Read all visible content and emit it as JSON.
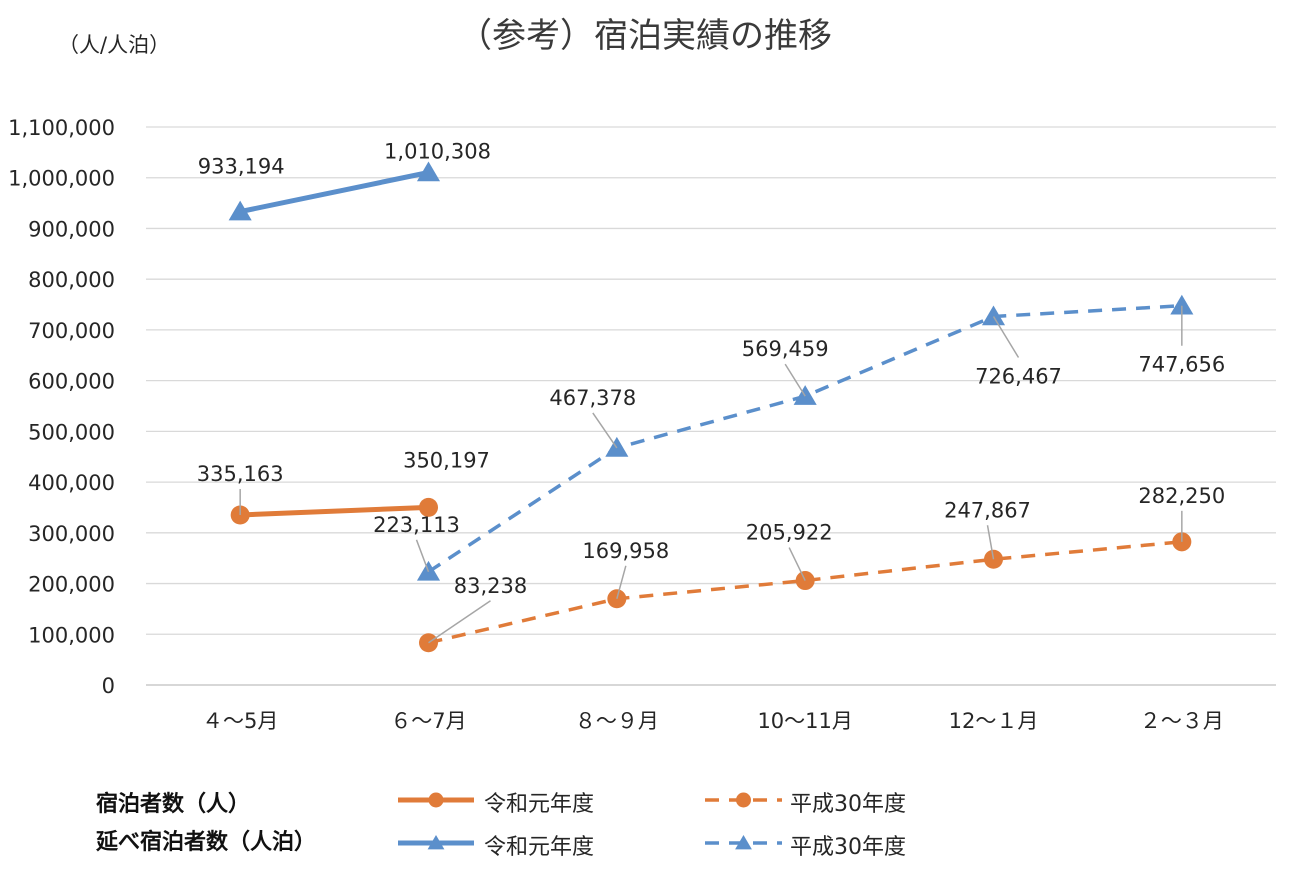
{
  "chart_data": {
    "type": "line",
    "title": "（参考）宿泊実績の推移",
    "ylabel": "（人/人泊）",
    "xlabel": "",
    "categories": [
      "４～5月",
      "６～7月",
      "８～９月",
      "10～11月",
      "12～１月",
      "２～３月"
    ],
    "ylim": [
      0,
      1100000
    ],
    "yticks": [
      0,
      100000,
      200000,
      300000,
      400000,
      500000,
      600000,
      700000,
      800000,
      900000,
      1000000,
      1100000
    ],
    "ytick_labels": [
      "0",
      "100,000",
      "200,000",
      "300,000",
      "400,000",
      "500,000",
      "600,000",
      "700,000",
      "800,000",
      "900,000",
      "1,000,000",
      "1,100,000"
    ],
    "grid": true,
    "legend_position": "bottom",
    "legend_groups": [
      "宿泊者数（人）",
      "延べ宿泊者数（人泊）"
    ],
    "series": [
      {
        "name": "令和元年度",
        "group": "宿泊者数（人）",
        "color": "#E07B39",
        "marker": "circle",
        "dash": "solid",
        "values": [
          335163,
          350197,
          null,
          null,
          null,
          null
        ],
        "labels": [
          "335,163",
          "350,197",
          null,
          null,
          null,
          null
        ]
      },
      {
        "name": "平成30年度",
        "group": "宿泊者数（人）",
        "color": "#E07B39",
        "marker": "circle",
        "dash": "dashed",
        "values": [
          null,
          83238,
          169958,
          205922,
          247867,
          282250
        ],
        "labels": [
          null,
          "83,238",
          "169,958",
          "205,922",
          "247,867",
          "282,250"
        ]
      },
      {
        "name": "令和元年度",
        "group": "延べ宿泊者数（人泊）",
        "color": "#5B8FCB",
        "marker": "triangle",
        "dash": "solid",
        "values": [
          933194,
          1010308,
          null,
          null,
          null,
          null
        ],
        "labels": [
          "933,194",
          "1,010,308",
          null,
          null,
          null,
          null
        ]
      },
      {
        "name": "平成30年度",
        "group": "延べ宿泊者数（人泊）",
        "color": "#5B8FCB",
        "marker": "triangle",
        "dash": "dashed",
        "values": [
          null,
          223113,
          467378,
          569459,
          726467,
          747656
        ],
        "labels": [
          null,
          "223,113",
          "467,378",
          "569,459",
          "726,467",
          "747,656"
        ]
      }
    ]
  }
}
